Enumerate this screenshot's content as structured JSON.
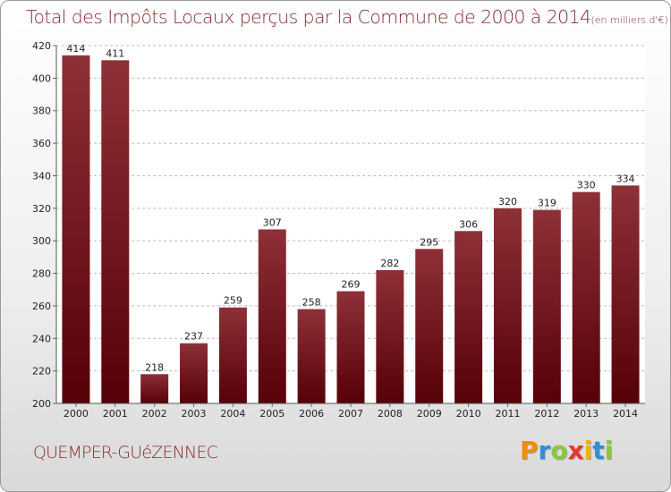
{
  "header": {
    "title": "Total des Impôts Locaux perçus par la Commune de 2000 à 2014",
    "unit": "(en milliers d'€)"
  },
  "footer": {
    "commune": "QUEMPER-GUéZENNEC"
  },
  "logo": {
    "letters": [
      "P",
      "r",
      "o",
      "x",
      "i",
      "t",
      "i"
    ],
    "colors": [
      "#f28c00",
      "#2e8fd6",
      "#8dc63f",
      "#e03a2f",
      "#f6b100",
      "#2e8fd6",
      "#8dc63f"
    ]
  },
  "colors": {
    "bar_top": "#8e3038",
    "bar_bottom": "#560008",
    "title": "#8a2a30"
  },
  "chart_data": {
    "type": "bar",
    "title": "Total des Impôts Locaux perçus par la Commune de 2000 à 2014",
    "xlabel": "",
    "ylabel": "",
    "categories": [
      "2000",
      "2001",
      "2002",
      "2003",
      "2004",
      "2005",
      "2006",
      "2007",
      "2008",
      "2009",
      "2010",
      "2011",
      "2012",
      "2013",
      "2014"
    ],
    "values": [
      414,
      411,
      218,
      237,
      259,
      307,
      258,
      269,
      282,
      295,
      306,
      320,
      319,
      330,
      334
    ],
    "ylim": [
      200,
      420
    ],
    "yticks": [
      200,
      220,
      240,
      260,
      280,
      300,
      320,
      340,
      360,
      380,
      400,
      420
    ],
    "grid": true
  }
}
